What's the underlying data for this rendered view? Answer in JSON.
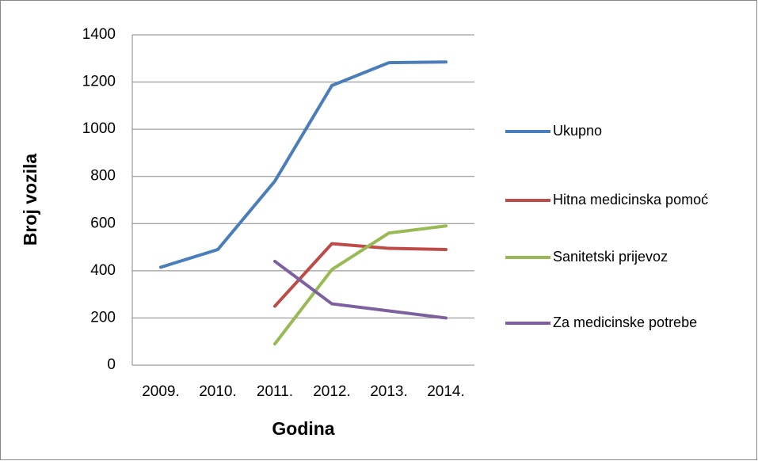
{
  "chart_data": {
    "type": "line",
    "x_label": "Godina",
    "y_label": "Broj vozila",
    "categories": [
      "2009.",
      "2010.",
      "2011.",
      "2012.",
      "2013.",
      "2014."
    ],
    "series": [
      {
        "name": "Ukupno",
        "color": "#4a7ebb",
        "values": [
          415,
          490,
          780,
          1185,
          1282,
          1285
        ]
      },
      {
        "name": "Hitna medicinska pomoć",
        "color": "#be4b48",
        "values": [
          null,
          null,
          250,
          515,
          495,
          490
        ]
      },
      {
        "name": "Sanitetski prijevoz",
        "color": "#98b954",
        "values": [
          null,
          null,
          90,
          405,
          560,
          590
        ]
      },
      {
        "name": "Za medicinske potrebe",
        "color": "#7d60a0",
        "values": [
          null,
          null,
          440,
          260,
          230,
          200
        ]
      }
    ],
    "ylim": [
      0,
      1400
    ],
    "yticks": [
      0,
      200,
      400,
      600,
      800,
      1000,
      1200,
      1400
    ],
    "grid": true,
    "legend": "right"
  }
}
